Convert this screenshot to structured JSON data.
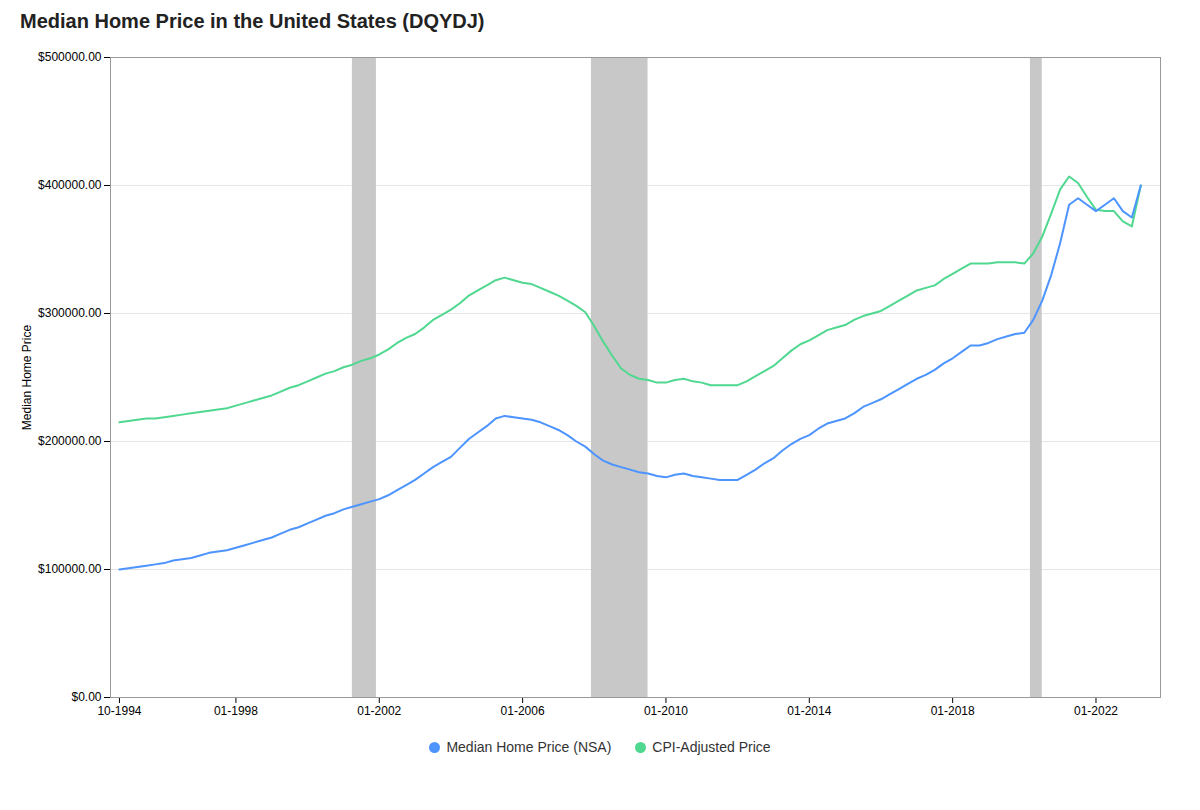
{
  "chart_data": {
    "type": "line",
    "title": "Median Home Price in the United States (DQYDJ)",
    "ylabel": "Median Home Price",
    "xlim": [
      1994.5,
      2023.8
    ],
    "xticks": [
      {
        "value": 1994.75,
        "label": "10-1994"
      },
      {
        "value": 1998.0,
        "label": "01-1998"
      },
      {
        "value": 2002.0,
        "label": "01-2002"
      },
      {
        "value": 2006.0,
        "label": "01-2006"
      },
      {
        "value": 2010.0,
        "label": "01-2010"
      },
      {
        "value": 2014.0,
        "label": "01-2014"
      },
      {
        "value": 2018.0,
        "label": "01-2018"
      },
      {
        "value": 2022.0,
        "label": "01-2022"
      }
    ],
    "ylim": [
      0,
      500000
    ],
    "yticks": [
      {
        "value": 0,
        "label": "$0.00"
      },
      {
        "value": 100000,
        "label": "$100000.00"
      },
      {
        "value": 200000,
        "label": "$200000.00"
      },
      {
        "value": 300000,
        "label": "$300000.00"
      },
      {
        "value": 400000,
        "label": "$400000.00"
      },
      {
        "value": 500000,
        "label": "$500000.00"
      }
    ],
    "grid": true,
    "legend": "bottom",
    "recession_bands": {
      "color": "#c8c8c8",
      "spans": [
        {
          "start": 2001.25,
          "end": 2001.92
        },
        {
          "start": 2007.92,
          "end": 2009.5
        },
        {
          "start": 2020.17,
          "end": 2020.5
        }
      ]
    },
    "x": [
      1994.75,
      1995.0,
      1995.25,
      1995.5,
      1995.75,
      1996.0,
      1996.25,
      1996.5,
      1996.75,
      1997.0,
      1997.25,
      1997.5,
      1997.75,
      1998.0,
      1998.25,
      1998.5,
      1998.75,
      1999.0,
      1999.25,
      1999.5,
      1999.75,
      2000.0,
      2000.25,
      2000.5,
      2000.75,
      2001.0,
      2001.25,
      2001.5,
      2001.75,
      2002.0,
      2002.25,
      2002.5,
      2002.75,
      2003.0,
      2003.25,
      2003.5,
      2003.75,
      2004.0,
      2004.25,
      2004.5,
      2004.75,
      2005.0,
      2005.25,
      2005.5,
      2005.75,
      2006.0,
      2006.25,
      2006.5,
      2006.75,
      2007.0,
      2007.25,
      2007.5,
      2007.75,
      2008.0,
      2008.25,
      2008.5,
      2008.75,
      2009.0,
      2009.25,
      2009.5,
      2009.75,
      2010.0,
      2010.25,
      2010.5,
      2010.75,
      2011.0,
      2011.25,
      2011.5,
      2011.75,
      2012.0,
      2012.25,
      2012.5,
      2012.75,
      2013.0,
      2013.25,
      2013.5,
      2013.75,
      2014.0,
      2014.25,
      2014.5,
      2014.75,
      2015.0,
      2015.25,
      2015.5,
      2015.75,
      2016.0,
      2016.25,
      2016.5,
      2016.75,
      2017.0,
      2017.25,
      2017.5,
      2017.75,
      2018.0,
      2018.25,
      2018.5,
      2018.75,
      2019.0,
      2019.25,
      2019.5,
      2019.75,
      2020.0,
      2020.25,
      2020.5,
      2020.75,
      2021.0,
      2021.25,
      2021.5,
      2021.75,
      2022.0,
      2022.25,
      2022.5,
      2022.75,
      2023.0,
      2023.25
    ],
    "series": [
      {
        "name": "Median Home Price (NSA)",
        "color": "#4d94ff",
        "values": [
          100000,
          101000,
          102000,
          103000,
          104000,
          105000,
          107000,
          108000,
          109000,
          111000,
          113000,
          114000,
          115000,
          117000,
          119000,
          121000,
          123000,
          125000,
          128000,
          131000,
          133000,
          136000,
          139000,
          142000,
          144000,
          147000,
          149000,
          151000,
          153000,
          155000,
          158000,
          162000,
          166000,
          170000,
          175000,
          180000,
          184000,
          188000,
          195000,
          202000,
          207000,
          212000,
          218000,
          220000,
          219000,
          218000,
          217000,
          215000,
          212000,
          209000,
          205000,
          200000,
          196000,
          190000,
          185000,
          182000,
          180000,
          178000,
          176000,
          175000,
          173000,
          172000,
          174000,
          175000,
          173000,
          172000,
          171000,
          170000,
          170000,
          170000,
          174000,
          178000,
          183000,
          187000,
          193000,
          198000,
          202000,
          205000,
          210000,
          214000,
          216000,
          218000,
          222000,
          227000,
          230000,
          233000,
          237000,
          241000,
          245000,
          249000,
          252000,
          256000,
          261000,
          265000,
          270000,
          275000,
          275000,
          277000,
          280000,
          282000,
          284000,
          285000,
          295000,
          310000,
          330000,
          355000,
          385000,
          390000,
          385000,
          380000,
          385000,
          390000,
          380000,
          375000,
          400000
        ]
      },
      {
        "name": "CPI-Adjusted Price",
        "color": "#50d890",
        "values": [
          215000,
          216000,
          217000,
          218000,
          218000,
          219000,
          220000,
          221000,
          222000,
          223000,
          224000,
          225000,
          226000,
          228000,
          230000,
          232000,
          234000,
          236000,
          239000,
          242000,
          244000,
          247000,
          250000,
          253000,
          255000,
          258000,
          260000,
          263000,
          265000,
          268000,
          272000,
          277000,
          281000,
          284000,
          289000,
          295000,
          299000,
          303000,
          308000,
          314000,
          318000,
          322000,
          326000,
          328000,
          326000,
          324000,
          323000,
          320000,
          317000,
          314000,
          310000,
          306000,
          301000,
          290000,
          278000,
          267000,
          257000,
          252000,
          249000,
          248000,
          246000,
          246000,
          248000,
          249000,
          247000,
          246000,
          244000,
          244000,
          244000,
          244000,
          247000,
          251000,
          255000,
          259000,
          265000,
          271000,
          276000,
          279000,
          283000,
          287000,
          289000,
          291000,
          295000,
          298000,
          300000,
          302000,
          306000,
          310000,
          314000,
          318000,
          320000,
          322000,
          327000,
          331000,
          335000,
          339000,
          339000,
          339000,
          340000,
          340000,
          340000,
          339000,
          347000,
          360000,
          378000,
          397000,
          407000,
          402000,
          391000,
          381000,
          380000,
          380000,
          372000,
          368000,
          400000
        ]
      }
    ]
  }
}
